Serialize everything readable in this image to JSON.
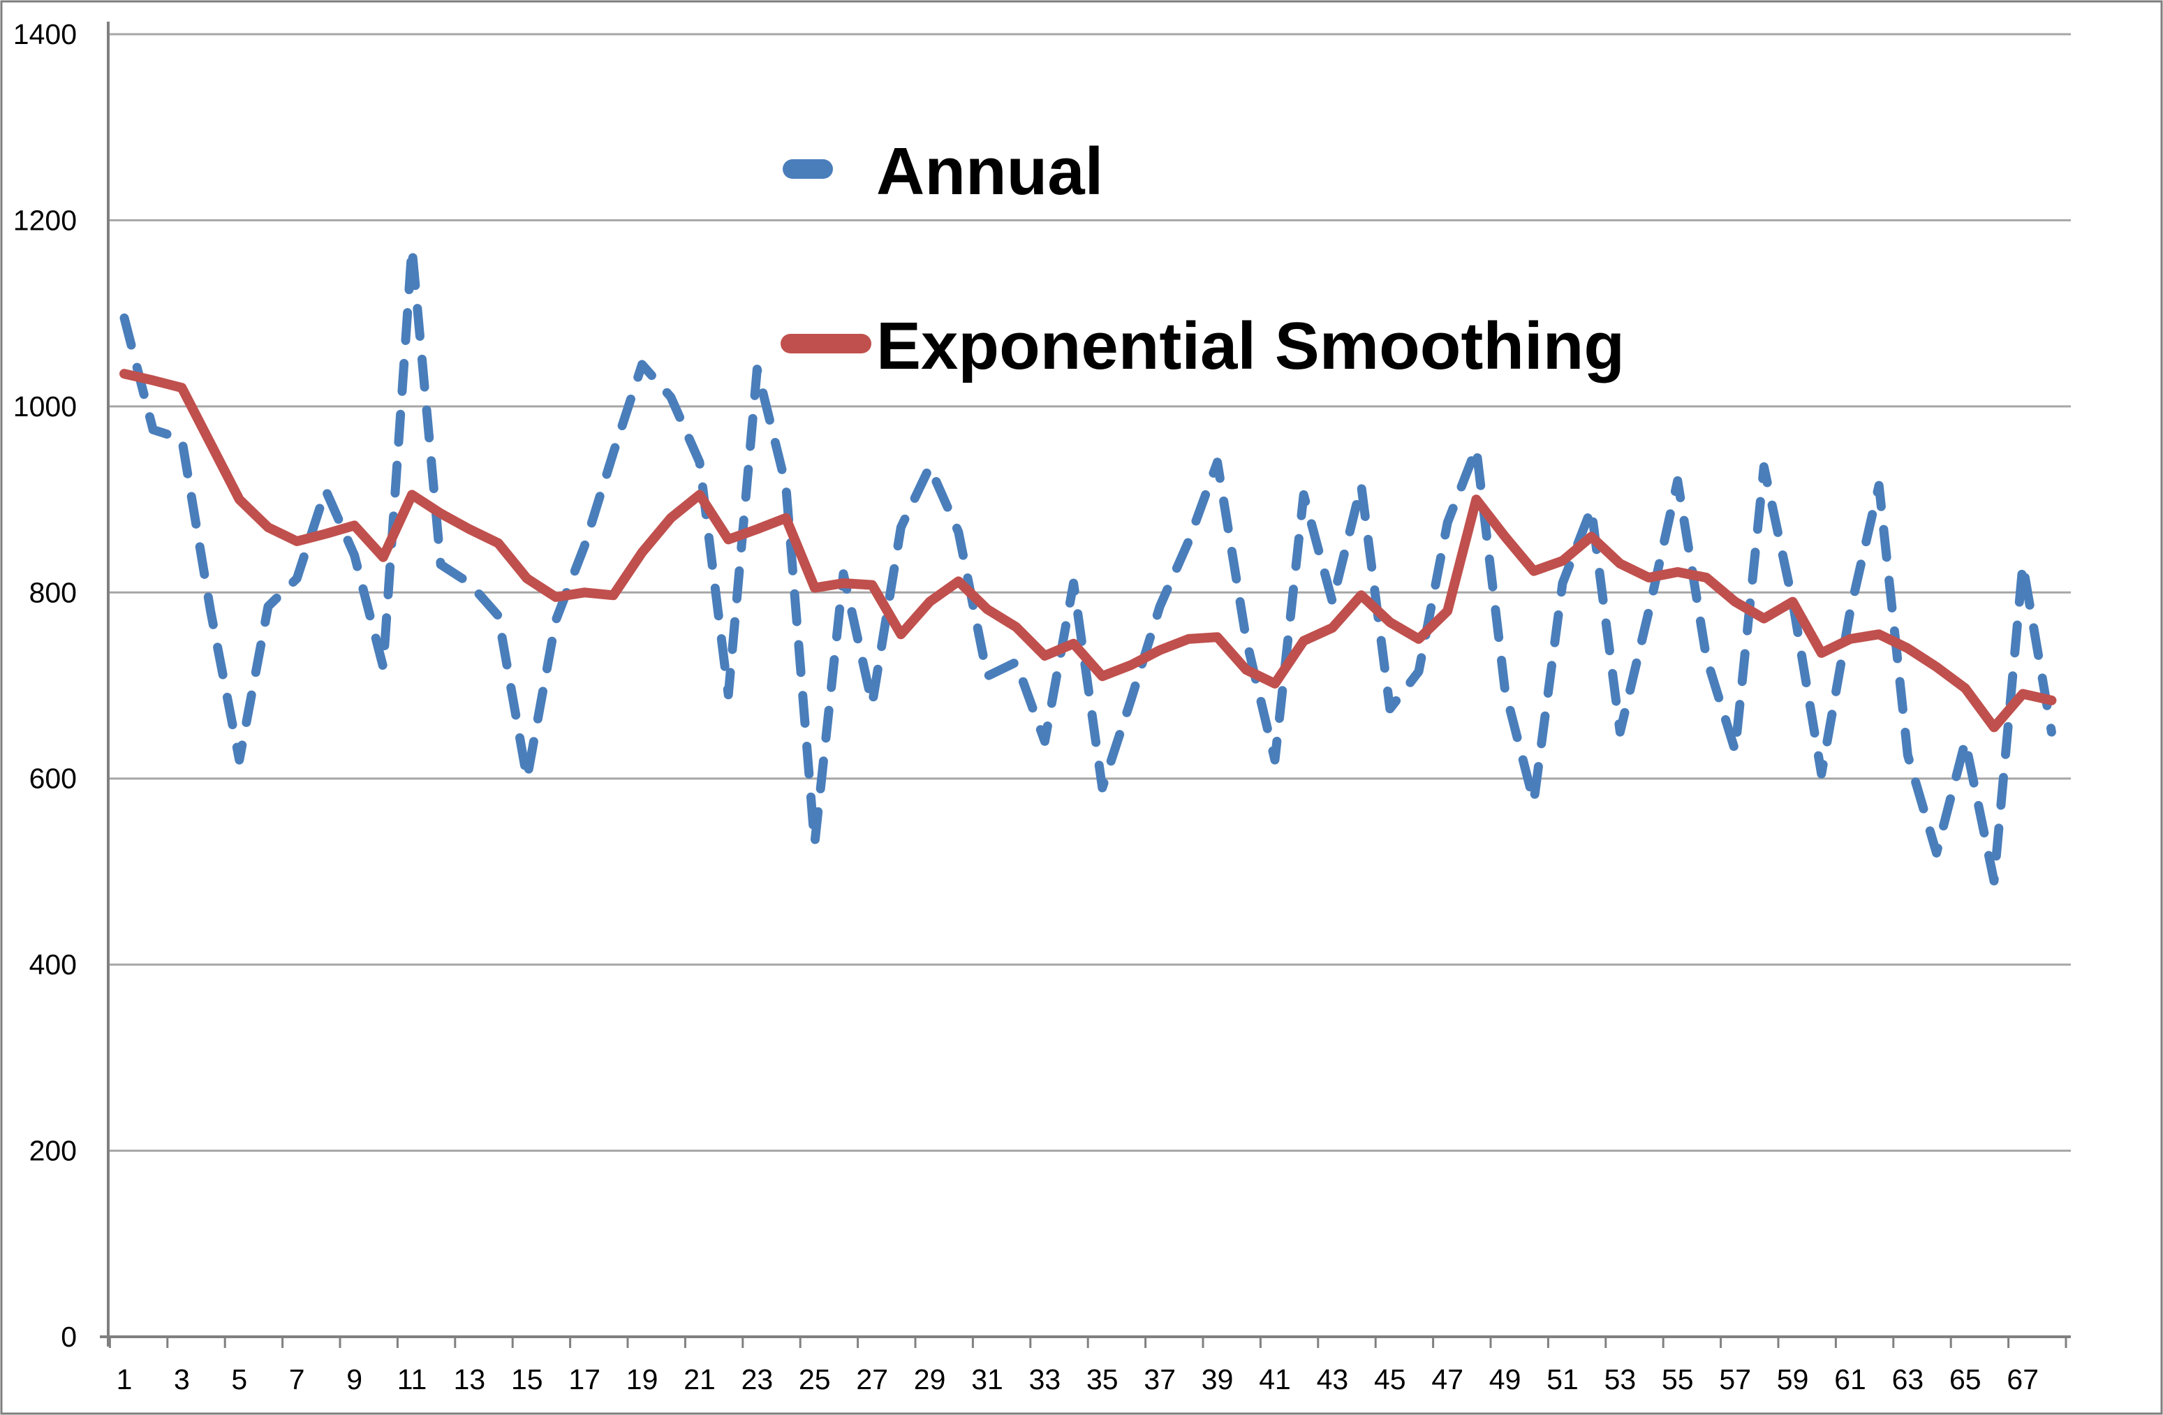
{
  "chart_data": {
    "type": "line",
    "title": "",
    "x": [
      1,
      2,
      3,
      4,
      5,
      6,
      7,
      8,
      9,
      10,
      11,
      12,
      13,
      14,
      15,
      16,
      17,
      18,
      19,
      20,
      21,
      22,
      23,
      24,
      25,
      26,
      27,
      28,
      29,
      30,
      31,
      32,
      33,
      34,
      35,
      36,
      37,
      38,
      39,
      40,
      41,
      42,
      43,
      44,
      45,
      46,
      47,
      48,
      49,
      50,
      51,
      52,
      53,
      54,
      55,
      56,
      57,
      58,
      59,
      60,
      61,
      62,
      63,
      64,
      65,
      66,
      67,
      68
    ],
    "x_tick_labels": [
      "1",
      "3",
      "5",
      "7",
      "9",
      "11",
      "13",
      "15",
      "17",
      "19",
      "21",
      "23",
      "25",
      "27",
      "29",
      "31",
      "33",
      "35",
      "37",
      "39",
      "41",
      "43",
      "45",
      "47",
      "49",
      "51",
      "53",
      "55",
      "57",
      "59",
      "61",
      "63",
      "65",
      "67"
    ],
    "yticks": [
      0,
      200,
      400,
      600,
      800,
      1000,
      1200,
      1400
    ],
    "ylim": [
      0,
      1400
    ],
    "grid": "horizontal",
    "legend_position": "top-center",
    "series": [
      {
        "name": "Annual",
        "style": "dashed",
        "color": "#4A7EBB",
        "values": [
          1095,
          975,
          965,
          780,
          620,
          785,
          815,
          910,
          840,
          720,
          1170,
          830,
          810,
          775,
          600,
          770,
          850,
          950,
          1045,
          1010,
          940,
          690,
          1040,
          915,
          530,
          820,
          680,
          870,
          935,
          865,
          710,
          725,
          640,
          810,
          590,
          685,
          785,
          855,
          940,
          750,
          620,
          905,
          790,
          915,
          675,
          715,
          875,
          955,
          695,
          575,
          810,
          890,
          650,
          780,
          920,
          730,
          630,
          935,
          790,
          605,
          780,
          915,
          625,
          520,
          640,
          490,
          830,
          650
        ]
      },
      {
        "name": "Exponential Smoothing",
        "style": "solid",
        "color": "#C0504D",
        "values": [
          1035,
          1028,
          1020,
          960,
          900,
          870,
          855,
          863,
          872,
          838,
          905,
          885,
          868,
          853,
          815,
          795,
          800,
          797,
          843,
          880,
          905,
          857,
          868,
          880,
          805,
          810,
          808,
          755,
          790,
          812,
          782,
          763,
          732,
          745,
          710,
          722,
          738,
          750,
          752,
          717,
          702,
          748,
          762,
          797,
          768,
          750,
          780,
          900,
          860,
          823,
          834,
          860,
          831,
          816,
          822,
          816,
          790,
          772,
          790,
          735,
          750,
          755,
          740,
          720,
          697,
          655,
          691,
          684
        ]
      }
    ]
  },
  "legend": {
    "annual_label": "Annual",
    "smoothing_label": "Exponential Smoothing"
  },
  "colors": {
    "annual": "#4A7EBB",
    "smoothing": "#C0504D",
    "gridline": "#A6A6A6",
    "axis": "#808080",
    "border": "#7F7F7F",
    "background": "#FFFFFF",
    "text": "#000000"
  }
}
